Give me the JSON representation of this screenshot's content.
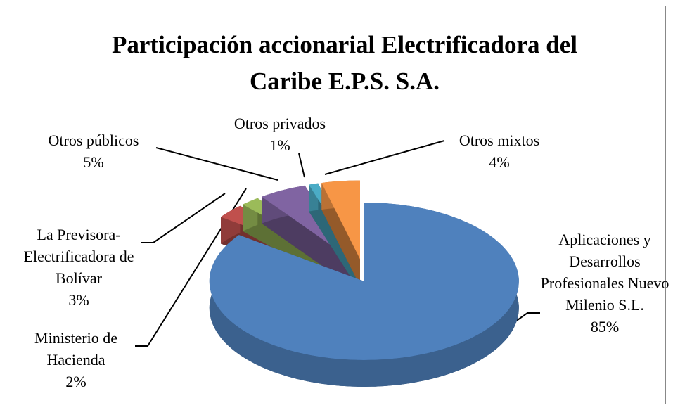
{
  "chart_data": {
    "type": "pie",
    "title": "Participación accionarial Electrificadora del Caribe E.P.S. S.A.",
    "categories": [
      "Aplicaciones y Desarrollos Profesionales Nuevo Milenio S.L.",
      "La Previsora-Electrificadora de Bolívar",
      "Ministerio de Hacienda",
      "Otros públicos",
      "Otros privados",
      "Otros mixtos"
    ],
    "values": [
      85,
      3,
      2,
      5,
      1,
      4
    ],
    "value_labels": [
      "85%",
      "3%",
      "2%",
      "5%",
      "1%",
      "4%"
    ],
    "colors": [
      "#4f81bd",
      "#c0504d",
      "#9bbb59",
      "#8064a2",
      "#4bacc6",
      "#f79646"
    ]
  }
}
